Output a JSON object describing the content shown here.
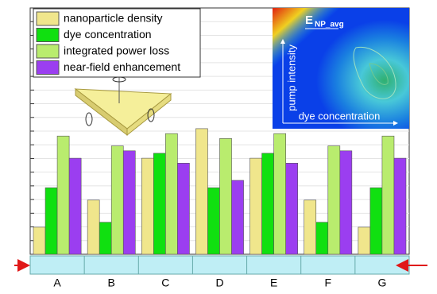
{
  "chart_data": {
    "type": "bar",
    "categories": [
      "A",
      "B",
      "C",
      "D",
      "E",
      "F",
      "G"
    ],
    "series": [
      {
        "name": "nanoparticle density",
        "color": "#f0e68c",
        "values": [
          11,
          22,
          39,
          51,
          39,
          22,
          11
        ]
      },
      {
        "name": "dye concentration",
        "color": "#10e010",
        "values": [
          27,
          13,
          41,
          27,
          41,
          13,
          27
        ]
      },
      {
        "name": "integrated power loss",
        "color": "#b9ec6e",
        "values": [
          48,
          44,
          49,
          47,
          49,
          44,
          48
        ]
      },
      {
        "name": "near-field enhancement",
        "color": "#9b3ef0",
        "values": [
          39,
          42,
          37,
          30,
          37,
          42,
          39
        ]
      }
    ],
    "ylim": [
      0,
      100
    ],
    "legend": "upper left",
    "inset": {
      "title": "E",
      "title_sub": "NP_avg",
      "y_label": "pump intensity",
      "x_label": "dye concentration"
    }
  }
}
